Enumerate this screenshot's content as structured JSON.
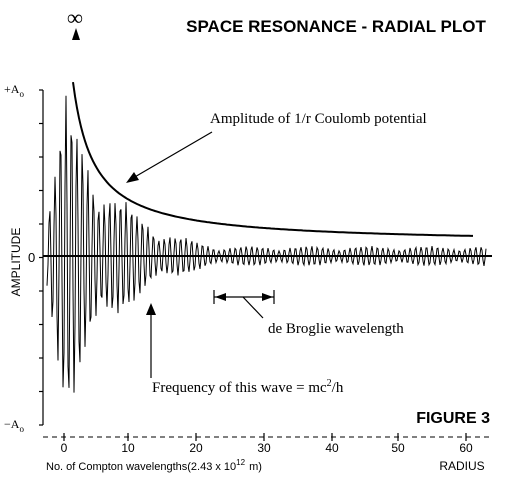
{
  "title": "SPACE RESONANCE - RADIAL PLOT",
  "figure_label": "FIGURE 3",
  "infinity_symbol": "∞",
  "y_axis": {
    "label": "AMPLITUDE",
    "top_label_main": "+A",
    "top_label_sub": "o",
    "zero_label": "0",
    "bottom_label_main": "−A",
    "bottom_label_sub": "o"
  },
  "x_axis": {
    "ticks": [
      "0",
      "10",
      "20",
      "30",
      "40",
      "50",
      "60"
    ],
    "caption_main": "No. of Compton wavelengths(2.43 x 10",
    "caption_exp": "12",
    "caption_end": "m)",
    "radius_label": "RADIUS"
  },
  "annotations": {
    "coulomb": "Amplitude of 1/r Coulomb potential",
    "de_broglie": "de Broglie wavelength",
    "frequency_main": "Frequency of this wave = mc",
    "frequency_exp": "2",
    "frequency_end": "/h"
  },
  "colors": {
    "ink": "#000000",
    "background": "#ffffff"
  }
}
